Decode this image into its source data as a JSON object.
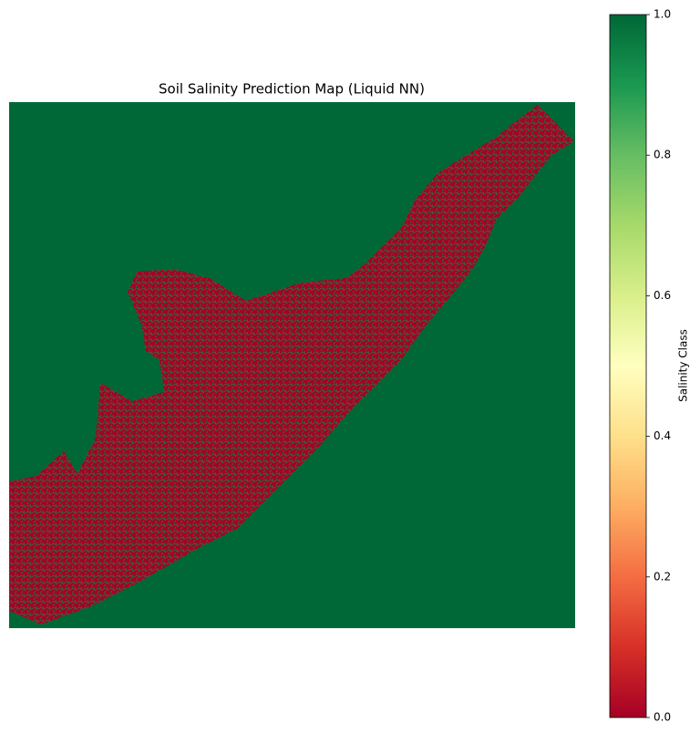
{
  "chart_data": {
    "type": "raster",
    "title": "Soil Salinity Prediction Map (Liquid NN)",
    "colorbar": {
      "label": "Salinity Class",
      "lim": [
        0,
        1
      ],
      "ticks": [
        {
          "value": 0,
          "label": "0.0"
        },
        {
          "value": 0.2,
          "label": "0.2"
        },
        {
          "value": 0.4,
          "label": "0.4"
        },
        {
          "value": 0.6,
          "label": "0.6"
        },
        {
          "value": 0.8,
          "label": "0.8"
        },
        {
          "value": 1,
          "label": "1.0"
        }
      ],
      "colormap": "RdYlGn",
      "colors": [
        "#a50026",
        "#d73027",
        "#f46d43",
        "#fdae61",
        "#fee08b",
        "#ffffbf",
        "#d9ef8b",
        "#a6d96a",
        "#66bd63",
        "#1a9850",
        "#006837"
      ]
    }
  }
}
